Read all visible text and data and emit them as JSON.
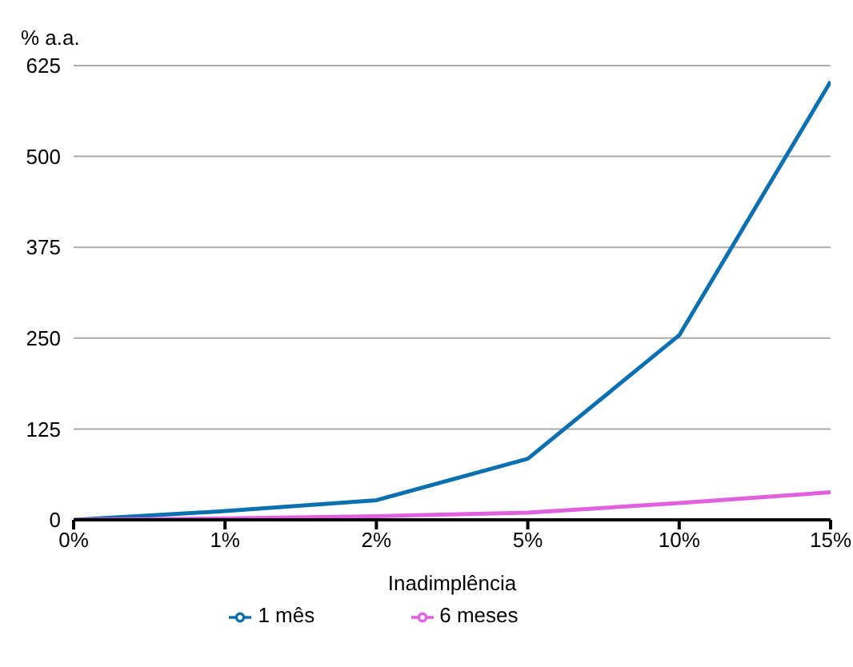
{
  "chart_data": {
    "type": "line",
    "xlabel": "Inadimplência",
    "ylabel": "% a.a.",
    "categories": [
      "0%",
      "1%",
      "2%",
      "5%",
      "10%",
      "15%"
    ],
    "series": [
      {
        "name": "1 mês",
        "color": "#0a70b0",
        "values": [
          0,
          12,
          27,
          84,
          254,
          603
        ]
      },
      {
        "name": "6 meses",
        "color": "#e060e0",
        "values": [
          0,
          2,
          5,
          10,
          23,
          38
        ]
      }
    ],
    "ylim": [
      0,
      625
    ],
    "yticks": [
      0,
      125,
      250,
      375,
      500,
      625
    ],
    "grid": "y",
    "legend": "bottom",
    "marker": "none",
    "line_style": "solid"
  }
}
